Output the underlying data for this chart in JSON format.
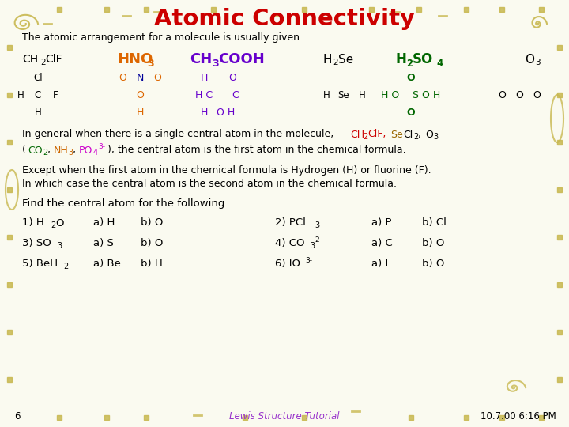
{
  "title": "Atomic Connectivity",
  "title_color": "#CC0000",
  "bg_color": "#FAFAF0",
  "decoration_color": "#C8B850",
  "slide_number": "6",
  "footer_text": "Lewis Structure Tutorial",
  "footer_color": "#9933CC",
  "timestamp": "10.7.00 6:16 PM",
  "body_text_color": "#000000",
  "line1": "The atomic arrangement for a molecule is usually given."
}
